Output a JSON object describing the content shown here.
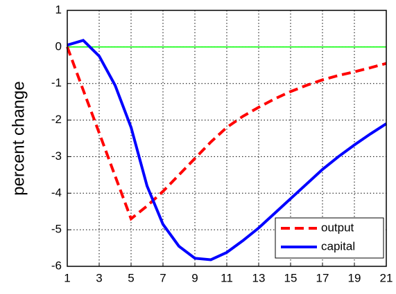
{
  "chart_data": {
    "type": "line",
    "ylabel": "percent change",
    "x": [
      1,
      2,
      3,
      4,
      5,
      6,
      7,
      8,
      9,
      10,
      11,
      12,
      13,
      14,
      15,
      16,
      17,
      18,
      19,
      20,
      21
    ],
    "series": [
      {
        "name": "output",
        "color": "#ff0000",
        "dash": true,
        "values": [
          0,
          -1.18,
          -2.35,
          -3.53,
          -4.7,
          -4.35,
          -3.95,
          -3.5,
          -3.05,
          -2.6,
          -2.2,
          -1.9,
          -1.65,
          -1.42,
          -1.22,
          -1.05,
          -0.9,
          -0.78,
          -0.68,
          -0.57,
          -0.45
        ]
      },
      {
        "name": "capital",
        "color": "#0000ff",
        "dash": false,
        "values": [
          0.05,
          0.18,
          -0.25,
          -1.05,
          -2.2,
          -3.8,
          -4.85,
          -5.45,
          -5.78,
          -5.82,
          -5.62,
          -5.3,
          -4.95,
          -4.55,
          -4.15,
          -3.75,
          -3.35,
          -3.0,
          -2.68,
          -2.38,
          -2.1
        ]
      }
    ],
    "hline": {
      "value": 0,
      "color": "#00ff00"
    },
    "xlim": [
      1,
      21
    ],
    "xticks": [
      1,
      3,
      5,
      7,
      9,
      11,
      13,
      15,
      17,
      19,
      21
    ],
    "ylim": [
      -6,
      1
    ],
    "yticks": [
      -6,
      -5,
      -4,
      -3,
      -2,
      -1,
      0,
      1
    ],
    "grid": true,
    "legend": "lower right"
  }
}
